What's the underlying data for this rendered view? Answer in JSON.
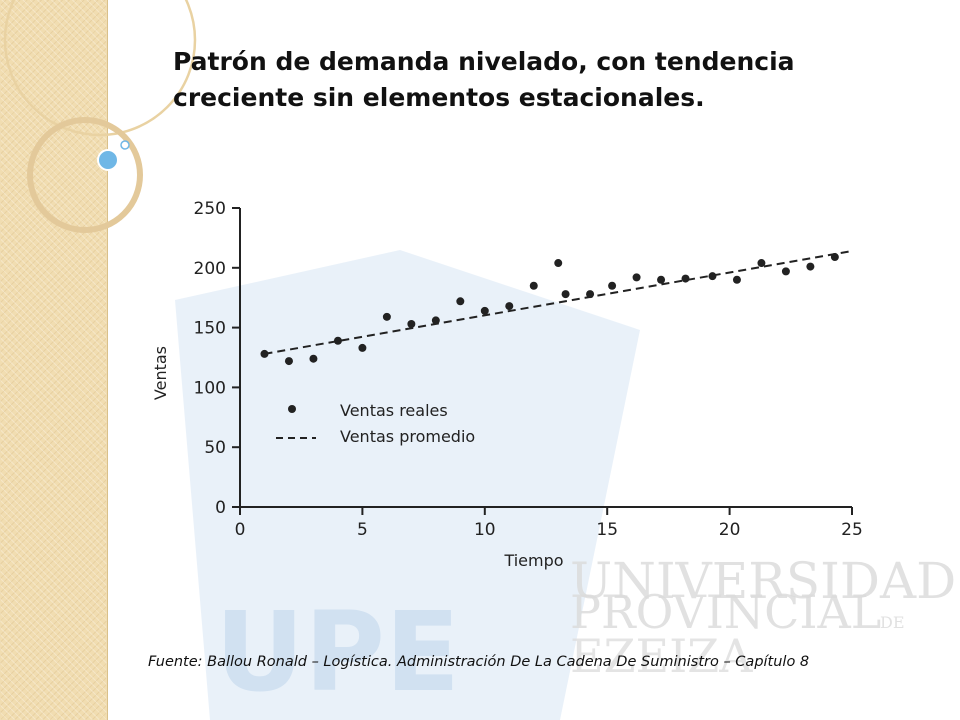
{
  "slide": {
    "title_line1": "Patrón de demanda nivelado, con tendencia",
    "title_line2": "creciente sin elementos estacionales.",
    "source": "Fuente: Ballou Ronald – Logística. Administración De La Cadena De Suministro – Capítulo 8"
  },
  "watermark": {
    "logo": "UPE",
    "name_line1": "UNIVERSIDAD",
    "name_line2": "PROVINCIAL",
    "name_suffix": "DE",
    "name_line3": "EZEIZA"
  },
  "colors": {
    "strip": "#f1ddb1",
    "watermark_blue": "#c9dcef",
    "watermark_gray": "#dcdcdc",
    "ink": "#222222",
    "accent_bubble": "#6fb7e6"
  },
  "chart_data": {
    "type": "scatter",
    "xlabel": "Tiempo",
    "ylabel": "Ventas",
    "xlim": [
      0,
      25
    ],
    "ylim": [
      0,
      250
    ],
    "xticks": [
      0,
      5,
      10,
      15,
      20,
      25
    ],
    "yticks": [
      0,
      50,
      100,
      150,
      200,
      250
    ],
    "grid": false,
    "legend_position": "center-left",
    "series": [
      {
        "name": "Ventas reales",
        "kind": "points",
        "x": [
          1,
          2,
          3,
          4,
          5,
          6,
          7,
          8,
          9,
          10,
          11,
          12,
          13,
          13.3,
          14.3,
          15.2,
          16.2,
          17.2,
          18.2,
          19.3,
          20.3,
          21.3,
          22.3,
          23.3,
          24.3
        ],
        "y": [
          128,
          122,
          124,
          139,
          133,
          159,
          153,
          156,
          172,
          164,
          168,
          185,
          204,
          178,
          178,
          185,
          192,
          190,
          191,
          193,
          190,
          204,
          197,
          201,
          209
        ]
      },
      {
        "name": "Ventas promedio",
        "kind": "dashed-line",
        "x": [
          1,
          25
        ],
        "y": [
          128,
          214
        ]
      }
    ]
  }
}
